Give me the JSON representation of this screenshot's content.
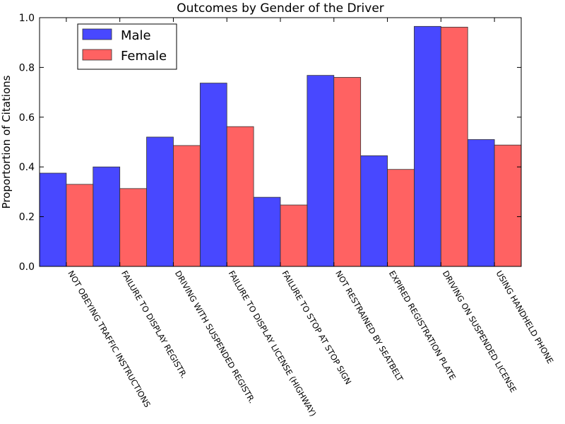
{
  "chart_data": {
    "type": "bar",
    "title": "Outcomes by Gender of the  Driver",
    "xlabel": "",
    "ylabel": "Proportortion of Citations",
    "ylim": [
      0,
      1.0
    ],
    "yticks": [
      "0.0",
      "0.2",
      "0.4",
      "0.6",
      "0.8",
      "1.0"
    ],
    "grid": false,
    "legend_position": "top-left",
    "categories": [
      "NOT OBEYING TRAFFIC INSTRUCTIONS",
      "FAILURE TO DISPLAY REGISTR.",
      "DRIVING WITH SUSPENDED REGISTR.",
      "FAILURE TO DISPLAY LICENSE (HIGHWAY)",
      "FAILURE TO STOP AT STOP SIGN",
      "NOT RESTRAINED BY SEATBELT",
      "EXPIRED REGISTRATION PLATE",
      "DRIVING ON SUSPENDED LICENSE",
      "USING HANDHELD PHONE"
    ],
    "series": [
      {
        "name": "Male",
        "color": "#4848ff",
        "values": [
          0.375,
          0.4,
          0.52,
          0.737,
          0.278,
          0.768,
          0.445,
          0.965,
          0.51
        ]
      },
      {
        "name": "Female",
        "color": "#ff6262",
        "values": [
          0.33,
          0.313,
          0.486,
          0.562,
          0.247,
          0.76,
          0.39,
          0.962,
          0.488
        ]
      }
    ]
  }
}
